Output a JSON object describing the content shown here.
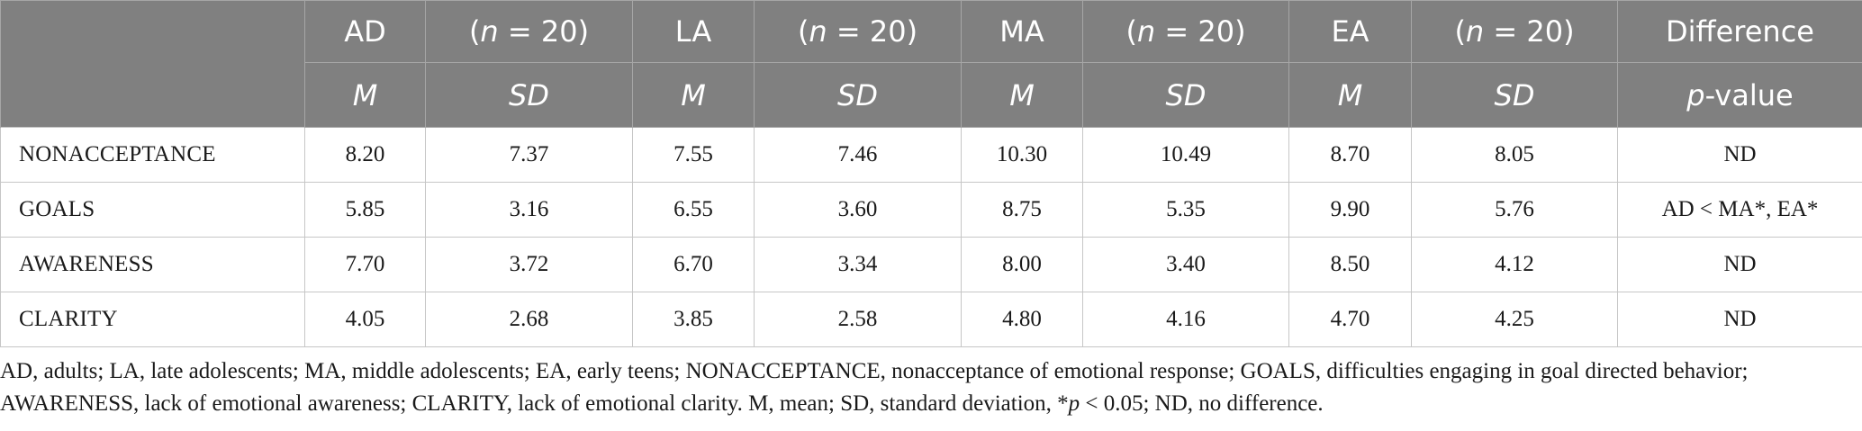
{
  "table": {
    "header_row_1": [
      {
        "text": "AD",
        "italic": false
      },
      {
        "text": "(n = 20)",
        "italic_part": "n",
        "before": "(",
        "after": " = 20)"
      },
      {
        "text": "LA",
        "italic": false
      },
      {
        "text": "(n = 20)",
        "italic_part": "n",
        "before": "(",
        "after": " = 20)"
      },
      {
        "text": "MA",
        "italic": false
      },
      {
        "text": "(n = 20)",
        "italic_part": "n",
        "before": "(",
        "after": " = 20)"
      },
      {
        "text": "EA",
        "italic": false
      },
      {
        "text": "(n = 20)",
        "italic_part": "n",
        "before": "(",
        "after": " = 20)"
      },
      {
        "text": "Difference",
        "italic": false
      }
    ],
    "header_row_2": [
      "M",
      "SD",
      "M",
      "SD",
      "M",
      "SD",
      "M",
      "SD"
    ],
    "header_row_2_last": {
      "italic": "p",
      "rest": "-value"
    },
    "rows": [
      {
        "label": "NONACCEPTANCE",
        "values": [
          "8.20",
          "7.37",
          "7.55",
          "7.46",
          "10.30",
          "10.49",
          "8.70",
          "8.05"
        ],
        "difference": "ND"
      },
      {
        "label": "GOALS",
        "values": [
          "5.85",
          "3.16",
          "6.55",
          "3.60",
          "8.75",
          "5.35",
          "9.90",
          "5.76"
        ],
        "difference": "AD < MA*, EA*"
      },
      {
        "label": "AWARENESS",
        "values": [
          "7.70",
          "3.72",
          "6.70",
          "3.34",
          "8.00",
          "3.40",
          "8.50",
          "4.12"
        ],
        "difference": "ND"
      },
      {
        "label": "CLARITY",
        "values": [
          "4.05",
          "2.68",
          "3.85",
          "2.58",
          "4.80",
          "4.16",
          "4.70",
          "4.25"
        ],
        "difference": "ND"
      }
    ]
  },
  "footnote": {
    "line1": "AD, adults; LA, late adolescents; MA, middle adolescents; EA, early teens; NONACCEPTANCE, nonacceptance of emotional response; GOALS, difficulties engaging in goal directed behavior;",
    "line2_before_p": "AWARENESS, lack of emotional awareness; CLARITY, lack of emotional clarity. M, mean; SD, standard deviation, *",
    "line2_p": "p",
    "line2_after_p": " < 0.05; ND, no difference."
  }
}
